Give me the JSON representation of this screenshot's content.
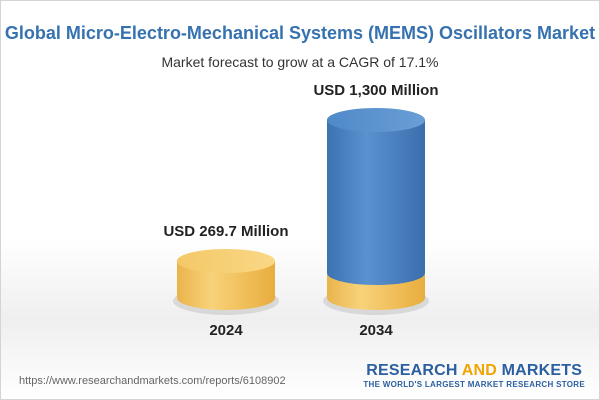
{
  "chart_data": {
    "type": "bar",
    "title": "Global Micro-Electro-Mechanical Systems (MEMS) Oscillators Market",
    "subtitle": "Market forecast to grow at a CAGR of 17.1%",
    "categories": [
      "2024",
      "2034"
    ],
    "values": [
      269.7,
      1300
    ],
    "value_labels": [
      "USD 269.7 Million",
      "USD 1,300 Million"
    ],
    "unit": "USD Million",
    "grid": false,
    "legend": "none"
  },
  "colors": {
    "title": "#3672b0",
    "bar_blue": "#4a82bf",
    "bar_gold": "#f2c35f"
  },
  "footer": {
    "source_url": "https://www.researchandmarkets.com/reports/6108902",
    "logo_part1": "RESEARCH ",
    "logo_part2": "AND",
    "logo_part3": " MARKETS",
    "logo_tagline": "THE WORLD'S LARGEST MARKET RESEARCH STORE"
  }
}
